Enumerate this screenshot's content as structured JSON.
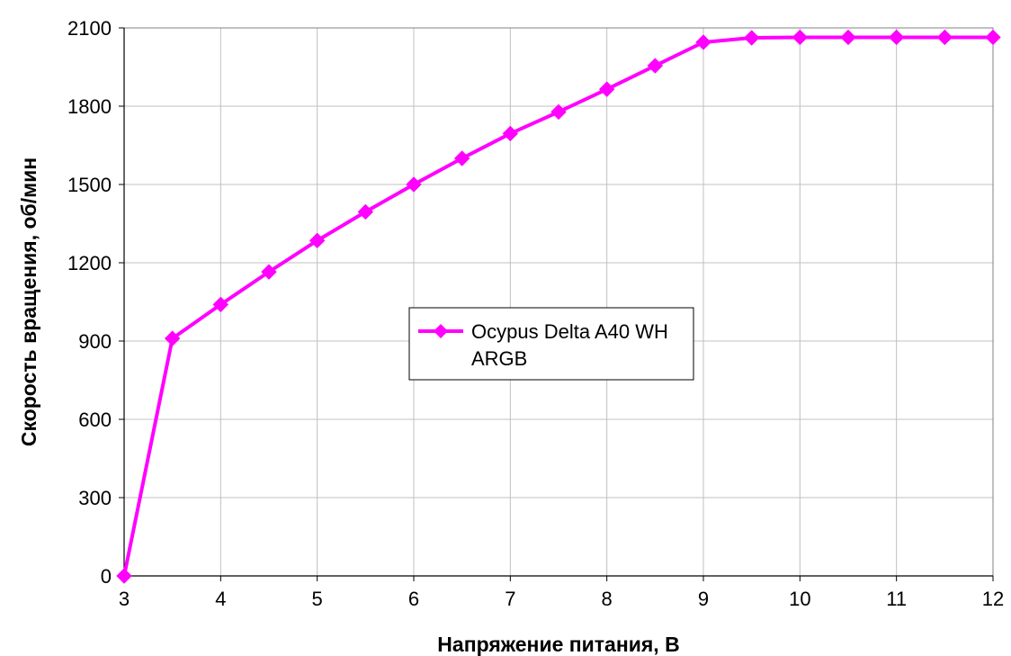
{
  "chart_data": {
    "type": "line",
    "title": "",
    "xlabel": "Напряжение питания, В",
    "ylabel": "Скорость вращения, об/мин",
    "xlim": [
      3,
      12
    ],
    "ylim": [
      0,
      2100
    ],
    "xticks": [
      3,
      4,
      5,
      6,
      7,
      8,
      9,
      10,
      11,
      12
    ],
    "yticks": [
      0,
      300,
      600,
      900,
      1200,
      1500,
      1800,
      2100
    ],
    "grid": true,
    "legend_position": "center",
    "series": [
      {
        "name": "Ocypus Delta A40 WH ARGB",
        "legend_lines": [
          "Ocypus Delta A40 WH",
          "ARGB"
        ],
        "color": "#ff00ff",
        "marker": "diamond",
        "x": [
          3,
          3.5,
          4,
          4.5,
          5,
          5.5,
          6,
          6.5,
          7,
          7.5,
          8,
          8.5,
          9,
          9.5,
          10,
          10.5,
          11,
          11.5,
          12
        ],
        "y": [
          0,
          910,
          1040,
          1165,
          1285,
          1395,
          1500,
          1600,
          1695,
          1778,
          1865,
          1955,
          2045,
          2062,
          2064,
          2064,
          2064,
          2064,
          2064
        ]
      }
    ]
  }
}
